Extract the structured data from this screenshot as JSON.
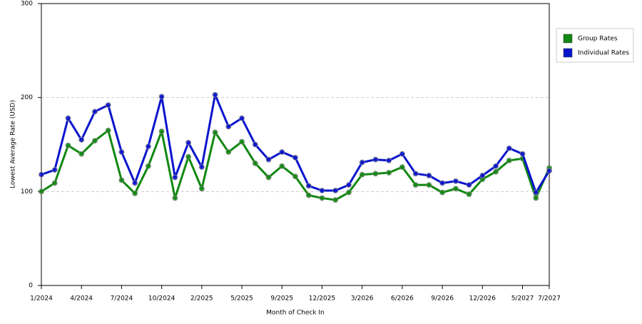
{
  "chart_data": {
    "type": "line",
    "x_label": "Month of Check In",
    "y_label": "Lowest Average Rate (USD)",
    "categories": [
      "1/2024",
      null,
      null,
      "4/2024",
      null,
      null,
      "7/2024",
      null,
      null,
      "10/2024",
      null,
      null,
      "2/2025",
      null,
      null,
      "5/2025",
      null,
      null,
      "9/2025",
      null,
      null,
      "12/2025",
      null,
      null,
      "3/2026",
      null,
      null,
      "6/2026",
      null,
      null,
      "9/2026",
      null,
      null,
      "12/2026",
      null,
      null,
      "5/2027",
      null,
      "7/2027"
    ],
    "series": [
      {
        "name": "Group Rates",
        "color": "#118811",
        "values": [
          100,
          109,
          149,
          140,
          154,
          165,
          112,
          98,
          127,
          164,
          93,
          137,
          103,
          163,
          142,
          153,
          130,
          115,
          127,
          116,
          96,
          93,
          91,
          99,
          118,
          119,
          120,
          126,
          107,
          107,
          99,
          103,
          97,
          113,
          121,
          133,
          135,
          93,
          125
        ]
      },
      {
        "name": "Individual Rates",
        "color": "#0a14cc",
        "values": [
          118,
          123,
          178,
          155,
          185,
          192,
          142,
          109,
          148,
          201,
          115,
          152,
          126,
          203,
          169,
          178,
          150,
          134,
          142,
          136,
          106,
          101,
          101,
          107,
          131,
          134,
          133,
          140,
          119,
          117,
          109,
          111,
          107,
          117,
          127,
          146,
          140,
          99,
          122
        ]
      }
    ],
    "ylim": [
      0,
      300
    ],
    "yticks": [
      0,
      100,
      200,
      300
    ],
    "grid": true,
    "legend": "right"
  }
}
